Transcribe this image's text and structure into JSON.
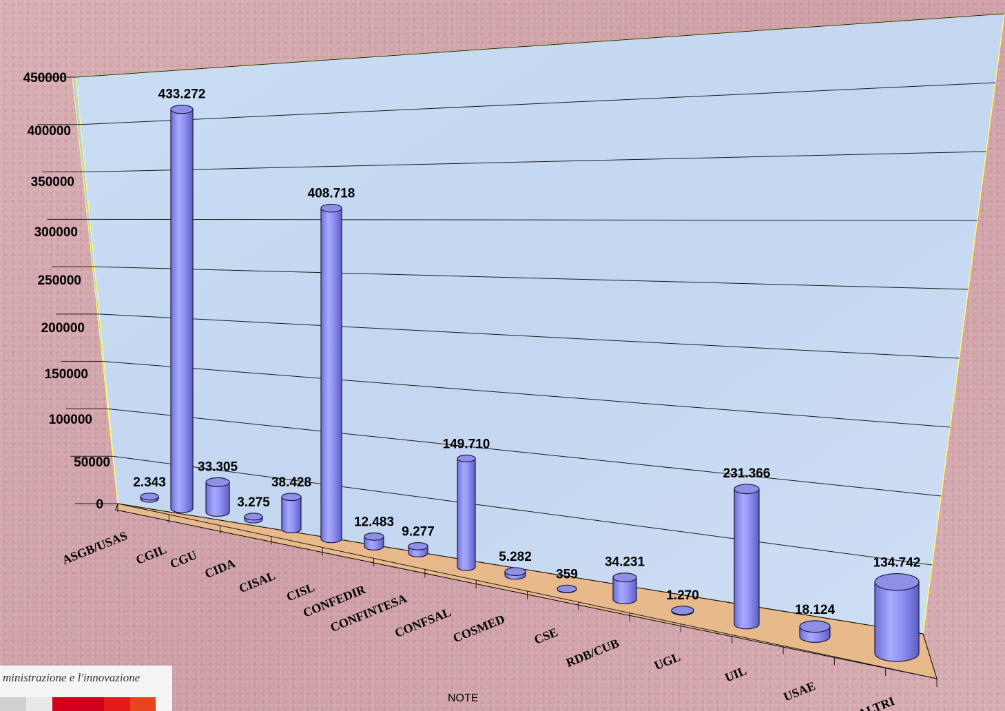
{
  "chart_data": {
    "type": "bar",
    "categories": [
      "ASGB/USAS",
      "CGIL",
      "CGU",
      "CIDA",
      "CISAL",
      "CISL",
      "CONFEDIR",
      "CONFINTESA",
      "CONFSAL",
      "COSMED",
      "CSE",
      "RDB/CUB",
      "UGL",
      "UIL",
      "USAE",
      "ALTRI"
    ],
    "values": [
      2343,
      433272,
      33305,
      3275,
      38428,
      408718,
      12483,
      9277,
      149710,
      5282,
      359,
      34231,
      1270,
      231366,
      18124,
      134742
    ],
    "data_labels": [
      "2.343",
      "433.272",
      "33.305",
      "3.275",
      "38.428",
      "408.718",
      "12.483",
      "9.277",
      "149.710",
      "5.282",
      "359",
      "34.231",
      "1.270",
      "231.366",
      "18.124",
      "134.742"
    ],
    "yticks": [
      "0",
      "50000",
      "100000",
      "150000",
      "200000",
      "250000",
      "300000",
      "350000",
      "400000",
      "450000"
    ],
    "ylim": [
      0,
      450000
    ],
    "grid": true,
    "legend": "none",
    "style": "3d-cylinder",
    "bar_color": "#9999ff",
    "floor_color": "#e8b98a",
    "wall_color": "#c8dcf4"
  },
  "note_label": "NOTE",
  "logo": {
    "text": "ministrazione e l'innovazione",
    "colors": [
      "#d0d0d0",
      "#e8e8e8",
      "#d1001c",
      "#e31a1c",
      "#e8441e"
    ]
  }
}
